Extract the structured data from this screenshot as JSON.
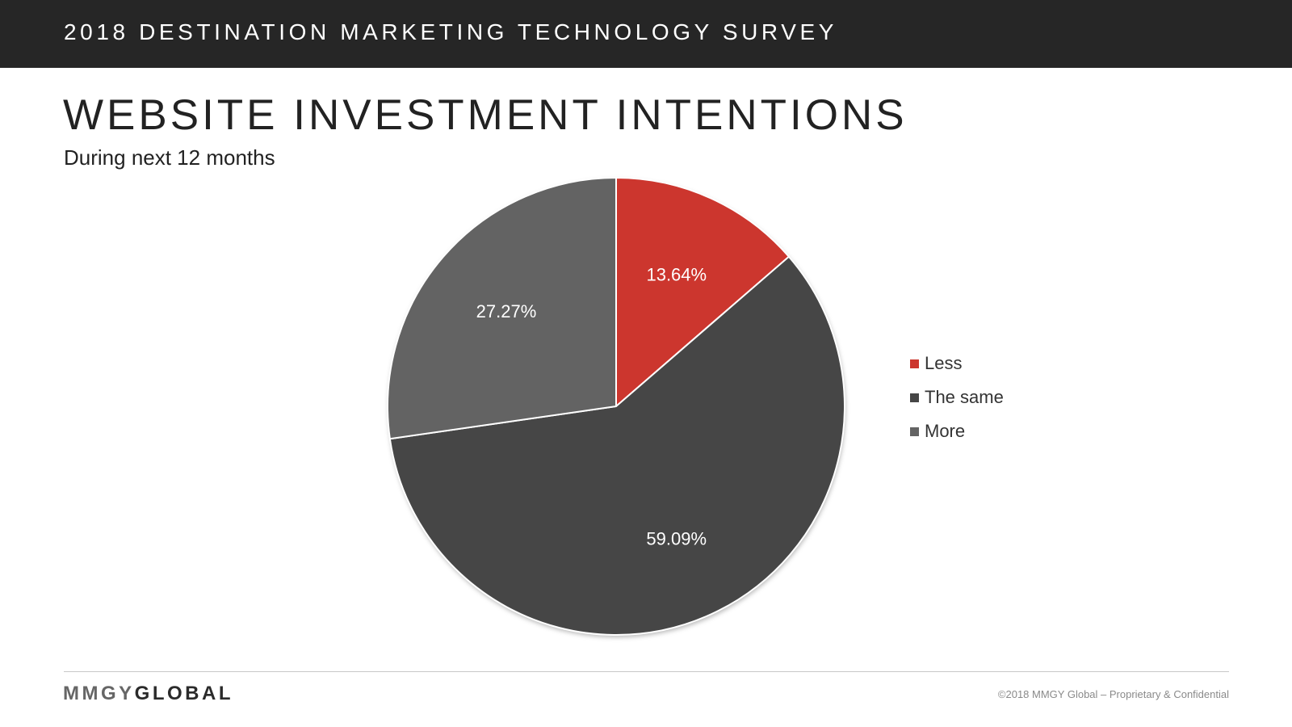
{
  "header": {
    "title": "2018 DESTINATION MARKETING TECHNOLOGY SURVEY"
  },
  "slide": {
    "title": "WEBSITE INVESTMENT INTENTIONS",
    "subtitle": "During next 12 months"
  },
  "chart_data": {
    "type": "pie",
    "categories": [
      "Less",
      "The same",
      "More"
    ],
    "values": [
      13.64,
      59.09,
      27.27
    ],
    "data_labels": [
      "13.64%",
      "59.09%",
      "27.27%"
    ],
    "colors": [
      "#cc362e",
      "#464646",
      "#636363"
    ],
    "start_angle": "top, clockwise",
    "legend": "right"
  },
  "legend": {
    "items": [
      {
        "label": "Less",
        "color": "#cc362e"
      },
      {
        "label": "The same",
        "color": "#464646"
      },
      {
        "label": "More",
        "color": "#636363"
      }
    ]
  },
  "footer": {
    "logo_part1": "MMGY",
    "logo_part2": "GLOBAL",
    "copyright": "©2018 MMGY Global – Proprietary & Confidential"
  }
}
